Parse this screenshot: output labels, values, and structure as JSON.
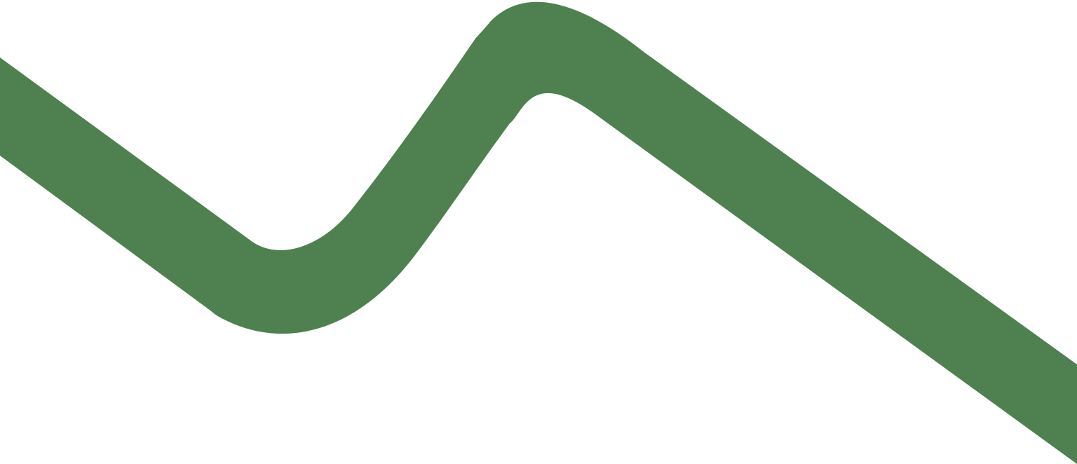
{
  "graphic": {
    "shape": "zigzag-ribbon",
    "fill_color": "#4e8050",
    "background_color": "#ffffff"
  }
}
